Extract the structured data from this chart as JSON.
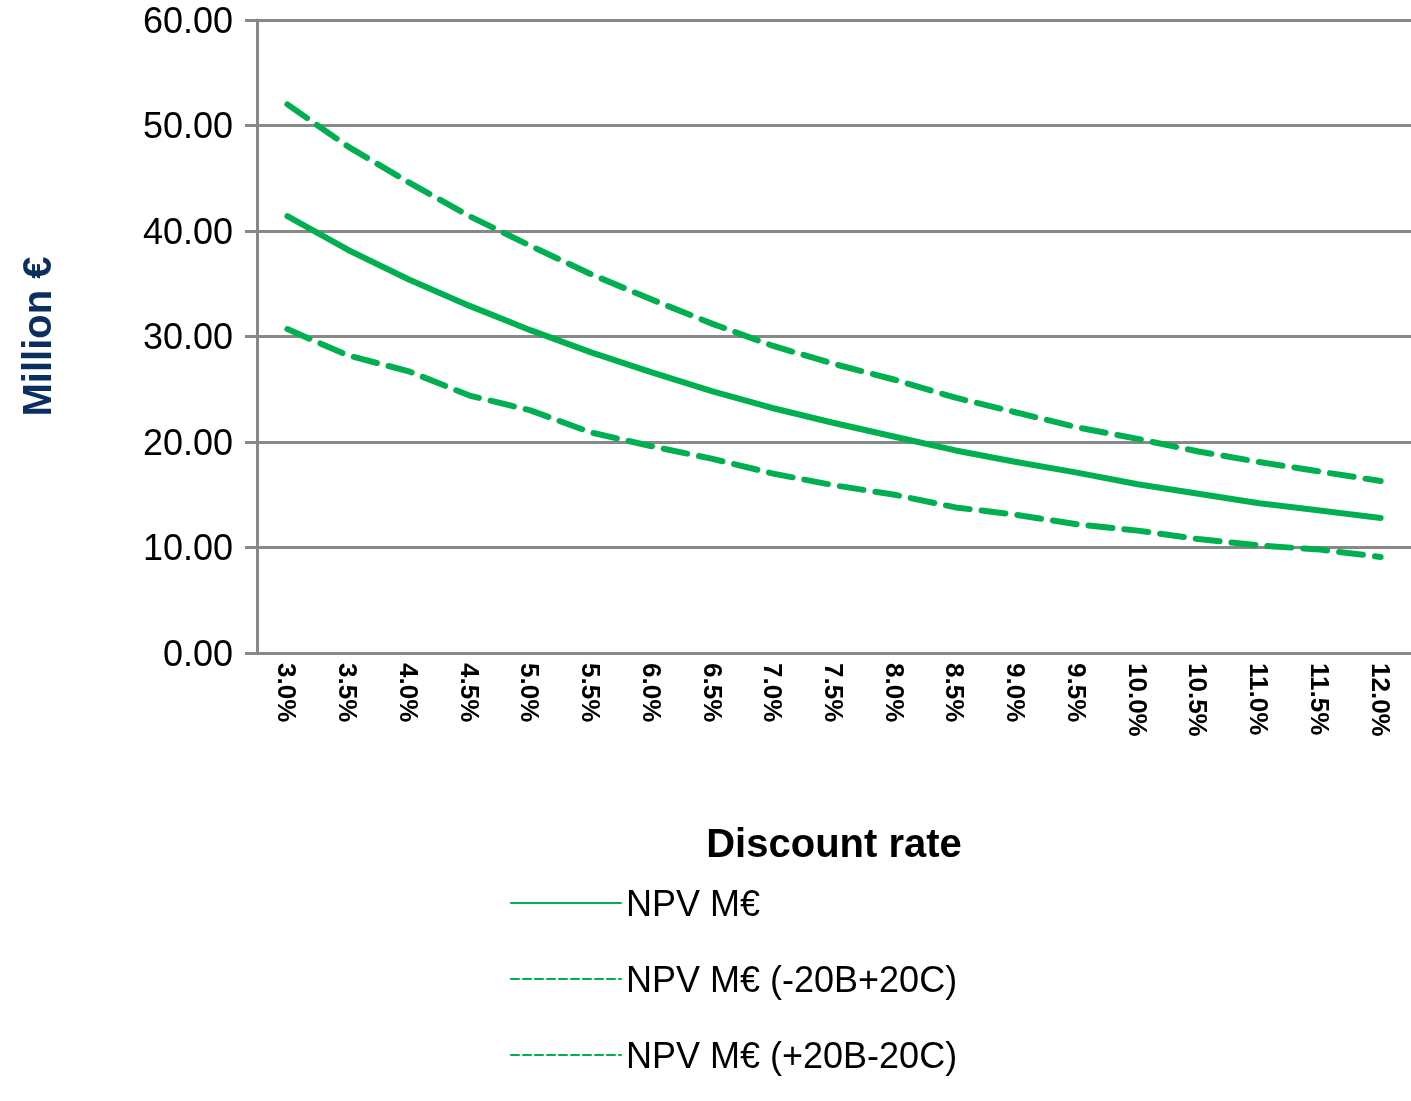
{
  "chart_data": {
    "type": "line",
    "xlabel": "Discount rate",
    "ylabel": "Million €",
    "categories": [
      "3.0%",
      "3.5%",
      "4.0%",
      "4.5%",
      "5.0%",
      "5.5%",
      "6.0%",
      "6.5%",
      "7.0%",
      "7.5%",
      "8.0%",
      "8.5%",
      "9.0%",
      "9.5%",
      "10.0%",
      "10.5%",
      "11.0%",
      "11.5%",
      "12.0%"
    ],
    "series": [
      {
        "name": "NPV M€",
        "color": "#00b050",
        "line_style": "solid",
        "values": [
          41.4,
          38.2,
          35.4,
          32.9,
          30.6,
          28.5,
          26.6,
          24.8,
          23.2,
          21.8,
          20.5,
          19.2,
          18.1,
          17.1,
          16.0,
          15.1,
          14.2,
          13.5,
          12.8
        ]
      },
      {
        "name": "NPV M€ (-20B+20C)",
        "color": "#00b050",
        "line_style": "dashed",
        "values": [
          52.0,
          48.0,
          44.6,
          41.4,
          38.6,
          35.9,
          33.5,
          31.2,
          29.1,
          27.4,
          25.9,
          24.2,
          22.8,
          21.4,
          20.3,
          19.1,
          18.1,
          17.2,
          16.3
        ]
      },
      {
        "name": "NPV M€ (+20B-20C)",
        "color": "#00b050",
        "line_style": "dashed",
        "values": [
          30.7,
          28.2,
          26.7,
          24.4,
          23.0,
          20.9,
          19.6,
          18.4,
          17.0,
          15.9,
          15.0,
          13.8,
          13.1,
          12.2,
          11.6,
          10.8,
          10.2,
          9.8,
          9.1
        ]
      }
    ],
    "ylim": [
      0,
      60
    ],
    "yticks": [
      {
        "value": 0,
        "label": "0.00"
      },
      {
        "value": 10,
        "label": "10.00"
      },
      {
        "value": 20,
        "label": "20.00"
      },
      {
        "value": 30,
        "label": "30.00"
      },
      {
        "value": 40,
        "label": "40.00"
      },
      {
        "value": 50,
        "label": "50.00"
      },
      {
        "value": 60,
        "label": "60.00"
      }
    ],
    "grid": "y",
    "legend": "bottom",
    "marker": "none"
  }
}
